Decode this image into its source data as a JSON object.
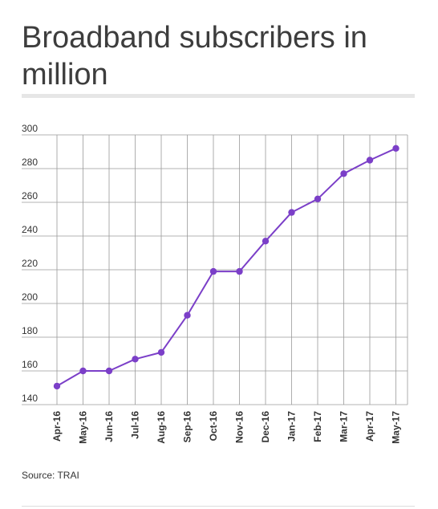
{
  "header": {
    "title": "Broadband subscribers in million"
  },
  "footer": {
    "source": "Source: TRAI"
  },
  "colors": {
    "line": "#7b3fc8",
    "grid": "#9a9a9a",
    "text": "#333333"
  },
  "chart_data": {
    "type": "line",
    "title": "Broadband subscribers in million",
    "xlabel": "",
    "ylabel": "",
    "categories": [
      "Apr-16",
      "May-16",
      "Jun-16",
      "Jul-16",
      "Aug-16",
      "Sep-16",
      "Oct-16",
      "Nov-16",
      "Dec-16",
      "Jan-17",
      "Feb-17",
      "Mar-17",
      "Apr-17",
      "May-17"
    ],
    "series": [
      {
        "values": [
          151,
          160,
          160,
          167,
          171,
          193,
          219,
          219,
          237,
          254,
          262,
          277,
          285,
          292
        ]
      }
    ],
    "ylim": [
      140,
      300
    ],
    "yticks": [
      140,
      160,
      180,
      200,
      220,
      240,
      260,
      280,
      300
    ],
    "grid": true,
    "legend": "none"
  }
}
